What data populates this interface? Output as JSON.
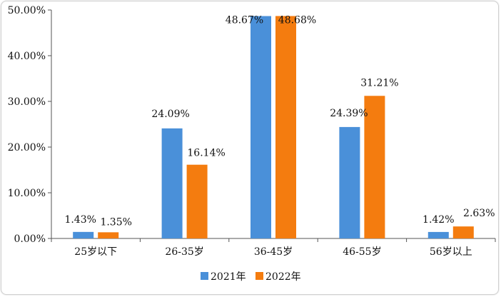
{
  "chart_data": {
    "type": "bar",
    "title": "",
    "xlabel": "",
    "ylabel": "",
    "categories": [
      "25岁以下",
      "26-35岁",
      "36-45岁",
      "46-55岁",
      "56岁以上"
    ],
    "series": [
      {
        "name": "2021年",
        "color": "#4a90d9",
        "values": [
          1.43,
          24.09,
          48.67,
          24.39,
          1.42
        ],
        "labels": [
          "1.43%",
          "24.09%",
          "48.67%",
          "24.39%",
          "1.42%"
        ]
      },
      {
        "name": "2022年",
        "color": "#f47c0f",
        "values": [
          1.35,
          16.14,
          48.68,
          31.21,
          2.63
        ],
        "labels": [
          "1.35%",
          "16.14%",
          "48.68%",
          "31.21%",
          "2.63%"
        ]
      }
    ],
    "ylim": [
      0,
      50
    ],
    "yticks": [
      0,
      10,
      20,
      30,
      40,
      50
    ],
    "ytick_labels": [
      "0.00%",
      "10.00%",
      "20.00%",
      "30.00%",
      "40.00%",
      "50.00%"
    ],
    "grid": false,
    "legend_position": "bottom-center"
  }
}
